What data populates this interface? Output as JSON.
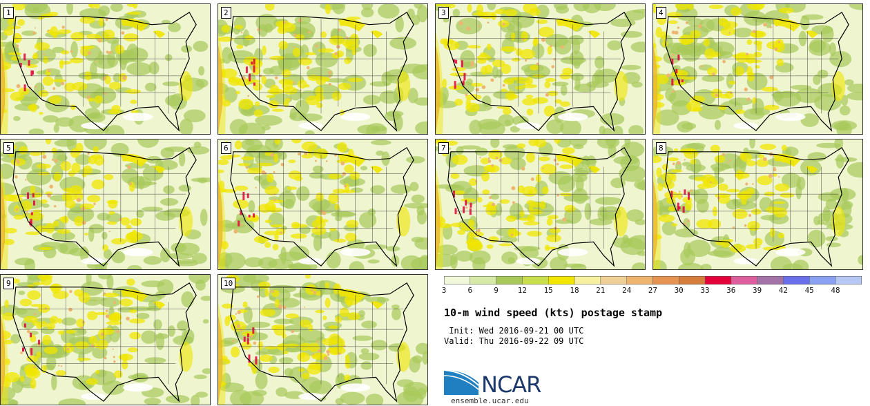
{
  "stamps": [
    {
      "label": "1"
    },
    {
      "label": "2"
    },
    {
      "label": "3"
    },
    {
      "label": "4"
    },
    {
      "label": "5"
    },
    {
      "label": "6"
    },
    {
      "label": "7"
    },
    {
      "label": "8"
    },
    {
      "label": "9"
    },
    {
      "label": "10"
    }
  ],
  "legend": {
    "ticks": [
      "3",
      "6",
      "9",
      "12",
      "15",
      "18",
      "21",
      "24",
      "27",
      "30",
      "33",
      "36",
      "39",
      "42",
      "45",
      "48"
    ],
    "colors": [
      "#f1f8da",
      "#d6e9a6",
      "#a8c95a",
      "#cadf4e",
      "#f0e600",
      "#f6f0a0",
      "#efd096",
      "#eeb470",
      "#e59452",
      "#d77d3c",
      "#e4003a",
      "#de5f9e",
      "#a373a8",
      "#6a70ea",
      "#8aa0f0",
      "#b8c8f4"
    ]
  },
  "title": "10-m wind speed (kts) postage stamp",
  "init": " Init: Wed 2016-09-21 00 UTC",
  "valid": "Valid: Thu 2016-09-22 09 UTC",
  "logo": {
    "text": "NCAR",
    "url": "ensemble.ucar.edu"
  }
}
